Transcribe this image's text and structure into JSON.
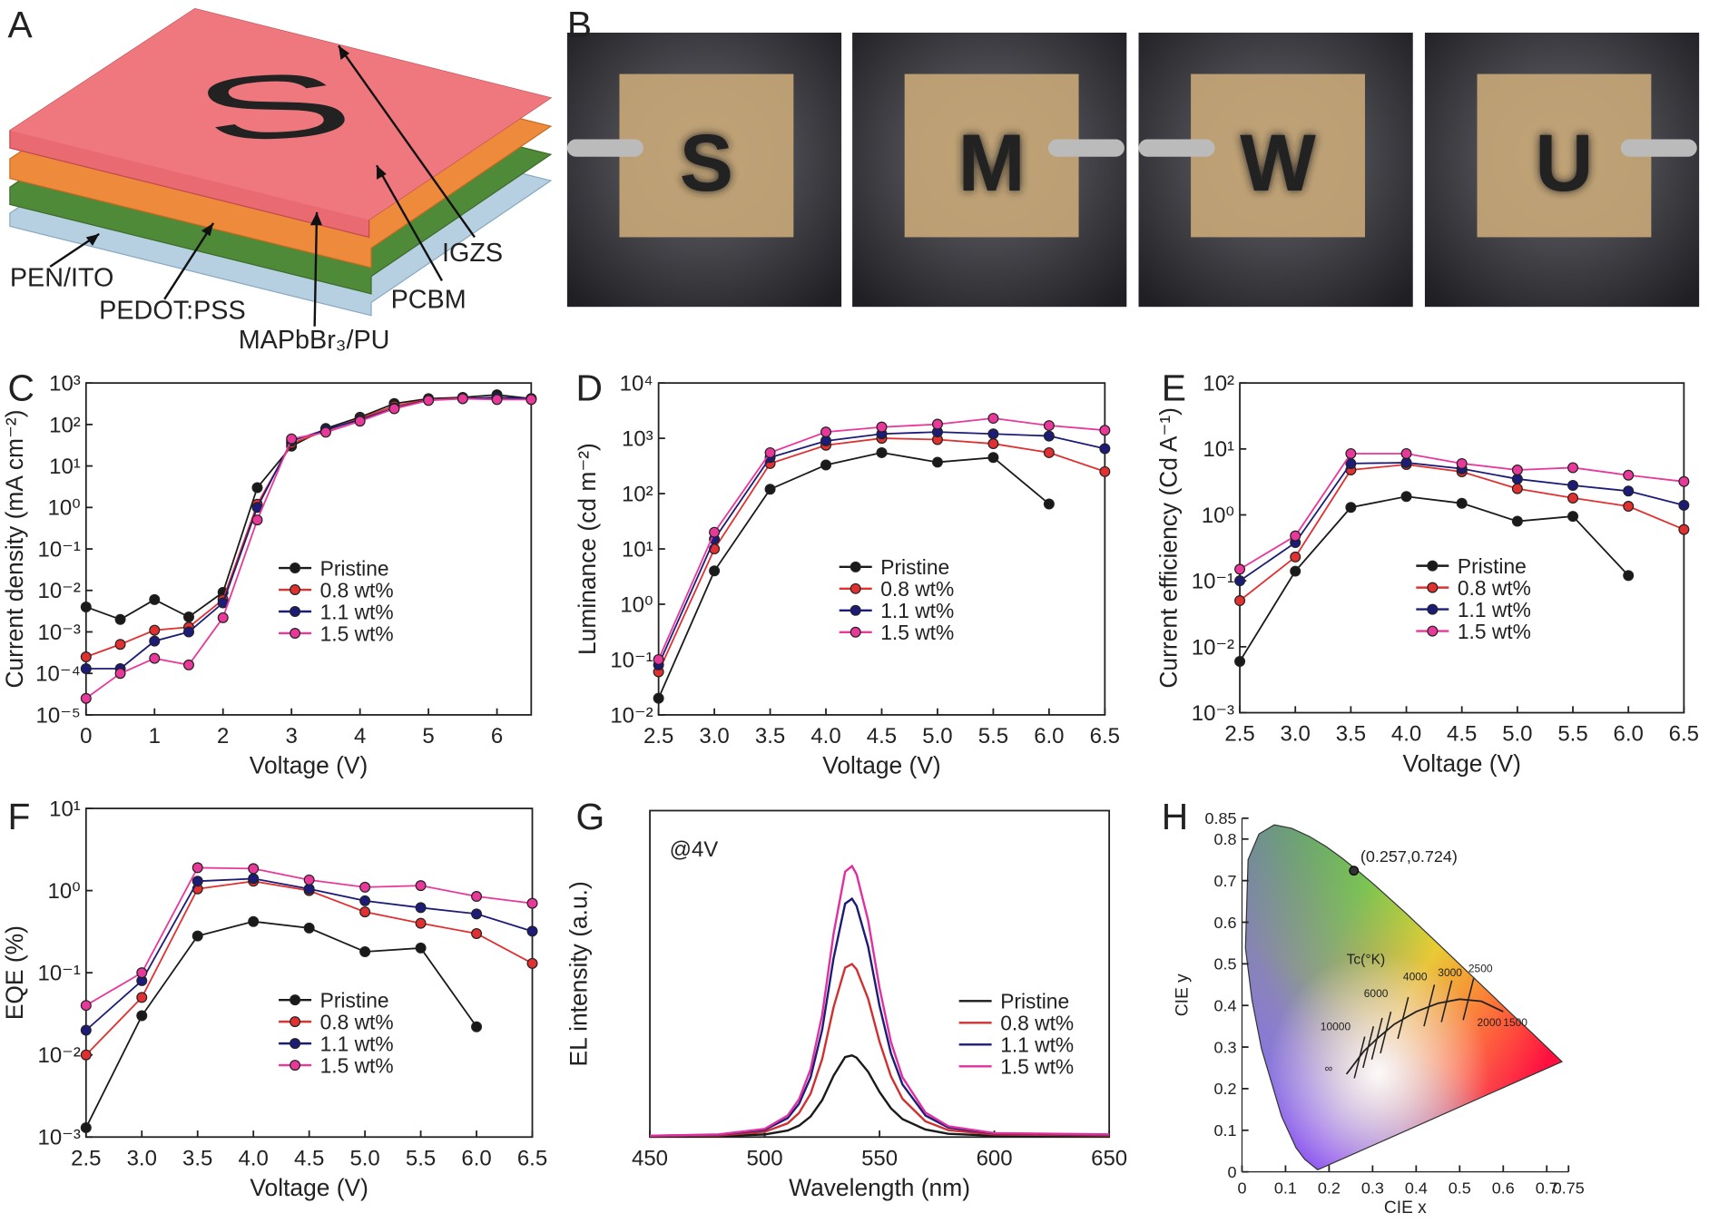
{
  "panel_labels": [
    "A",
    "B",
    "C",
    "D",
    "E",
    "F",
    "G",
    "H"
  ],
  "device_logo": "S",
  "device_layers": [
    "PEN/ITO",
    "PEDOT:PSS",
    "MAPbBr₃/PU",
    "PCBM",
    "IGZS"
  ],
  "photo_letters": [
    "S",
    "M",
    "W",
    "U"
  ],
  "chart_data": [
    {
      "type": "line",
      "x_label": "Voltage (V)",
      "y_label": "Current density (mA cm⁻²)",
      "x": [
        0,
        0.5,
        1,
        1.5,
        2,
        2.5,
        3,
        3.5,
        4,
        4.5,
        5,
        5.5,
        6,
        6.5
      ],
      "xlim": [
        0,
        6.5
      ],
      "xticks": [
        0,
        1,
        2,
        3,
        4,
        5,
        6
      ],
      "ylim": [
        1e-05,
        1000
      ],
      "log_y": true,
      "yticks": [
        {
          "value": 1e-05,
          "label": "10⁻⁵"
        },
        {
          "value": 0.0001,
          "label": "10⁻⁴"
        },
        {
          "value": 0.001,
          "label": "10⁻³"
        },
        {
          "value": 0.01,
          "label": "10⁻²"
        },
        {
          "value": 0.1,
          "label": "10⁻¹"
        },
        {
          "value": 1,
          "label": "10⁰"
        },
        {
          "value": 10,
          "label": "10¹"
        },
        {
          "value": 100,
          "label": "10²"
        },
        {
          "value": 1000,
          "label": "10³"
        }
      ],
      "markers": true,
      "legend": "center",
      "series": [
        {
          "name": "Pristine",
          "color": "#1a1a1a",
          "values": [
            0.004,
            0.002,
            0.006,
            0.0023,
            0.009,
            3,
            30,
            80,
            150,
            320,
            420,
            450,
            520,
            420
          ]
        },
        {
          "name": "0.8 wt%",
          "color": "#e03030",
          "values": [
            0.00025,
            0.0005,
            0.0011,
            0.0013,
            0.006,
            1.2,
            35,
            70,
            140,
            280,
            400,
            430,
            430,
            420
          ]
        },
        {
          "name": "1.1 wt%",
          "color": "#1c1c78",
          "values": [
            0.00013,
            0.00013,
            0.0006,
            0.001,
            0.005,
            1,
            40,
            75,
            130,
            250,
            390,
            420,
            450,
            420
          ]
        },
        {
          "name": "1.5 wt%",
          "color": "#e8389a",
          "values": [
            2.5e-05,
            0.0001,
            0.00023,
            0.00016,
            0.0022,
            0.5,
            45,
            65,
            120,
            240,
            380,
            420,
            400,
            400
          ]
        }
      ]
    },
    {
      "type": "line",
      "x_label": "Voltage (V)",
      "y_label": "Luminance (cd m⁻²)",
      "x": [
        2.5,
        3,
        3.5,
        4,
        4.5,
        5,
        5.5,
        6,
        6.5
      ],
      "xlim": [
        2.5,
        6.5
      ],
      "xticks": [
        2.5,
        {
          "value": 3,
          "label": "3.0"
        },
        3.5,
        {
          "value": 4,
          "label": "4.0"
        },
        4.5,
        {
          "value": 5,
          "label": "5.0"
        },
        5.5,
        {
          "value": 6,
          "label": "6.0"
        },
        6.5
      ],
      "ylim": [
        0.01,
        10000
      ],
      "log_y": true,
      "yticks": [
        {
          "value": 0.01,
          "label": "10⁻²"
        },
        {
          "value": 0.1,
          "label": "10⁻¹"
        },
        {
          "value": 1,
          "label": "10⁰"
        },
        {
          "value": 10,
          "label": "10¹"
        },
        {
          "value": 100,
          "label": "10²"
        },
        {
          "value": 1000,
          "label": "10³"
        },
        {
          "value": 10000,
          "label": "10⁴"
        }
      ],
      "markers": true,
      "legend": "center",
      "series": [
        {
          "name": "Pristine",
          "color": "#1a1a1a",
          "values": [
            0.02,
            4,
            120,
            330,
            550,
            370,
            450,
            65,
            null
          ]
        },
        {
          "name": "0.8 wt%",
          "color": "#e03030",
          "values": [
            0.06,
            10,
            350,
            750,
            1000,
            950,
            800,
            550,
            250
          ]
        },
        {
          "name": "1.1 wt%",
          "color": "#1c1c78",
          "values": [
            0.08,
            15,
            450,
            900,
            1200,
            1300,
            1200,
            1100,
            650
          ]
        },
        {
          "name": "1.5 wt%",
          "color": "#e8389a",
          "values": [
            0.1,
            20,
            550,
            1300,
            1600,
            1800,
            2300,
            1700,
            1400
          ]
        }
      ]
    },
    {
      "type": "line",
      "x_label": "Voltage (V)",
      "y_label": "Current efficiency (Cd A⁻¹)",
      "x": [
        2.5,
        3,
        3.5,
        4,
        4.5,
        5,
        5.5,
        6,
        6.5
      ],
      "xlim": [
        2.5,
        6.5
      ],
      "xticks": [
        2.5,
        {
          "value": 3,
          "label": "3.0"
        },
        3.5,
        {
          "value": 4,
          "label": "4.0"
        },
        4.5,
        {
          "value": 5,
          "label": "5.0"
        },
        5.5,
        {
          "value": 6,
          "label": "6.0"
        },
        6.5
      ],
      "ylim": [
        0.001,
        100
      ],
      "log_y": true,
      "yticks": [
        {
          "value": 0.001,
          "label": "10⁻³"
        },
        {
          "value": 0.01,
          "label": "10⁻²"
        },
        {
          "value": 0.1,
          "label": "10⁻¹"
        },
        {
          "value": 1,
          "label": "10⁰"
        },
        {
          "value": 10,
          "label": "10¹"
        },
        {
          "value": 100,
          "label": "10²"
        }
      ],
      "markers": true,
      "legend": "center",
      "series": [
        {
          "name": "Pristine",
          "color": "#1a1a1a",
          "values": [
            0.006,
            0.14,
            1.3,
            1.9,
            1.5,
            0.8,
            0.95,
            0.12,
            null
          ]
        },
        {
          "name": "0.8 wt%",
          "color": "#e03030",
          "values": [
            0.05,
            0.23,
            4.8,
            5.8,
            4.5,
            2.5,
            1.8,
            1.35,
            0.6
          ]
        },
        {
          "name": "1.1 wt%",
          "color": "#1c1c78",
          "values": [
            0.1,
            0.38,
            6,
            6.2,
            5,
            3.5,
            2.8,
            2.3,
            1.4
          ]
        },
        {
          "name": "1.5 wt%",
          "color": "#e8389a",
          "values": [
            0.15,
            0.48,
            8.5,
            8.5,
            6,
            4.8,
            5.2,
            4,
            3.2
          ]
        }
      ]
    },
    {
      "type": "line",
      "x_label": "Voltage (V)",
      "y_label": "EQE (%)",
      "x": [
        2.5,
        3,
        3.5,
        4,
        4.5,
        5,
        5.5,
        6,
        6.5
      ],
      "xlim": [
        2.5,
        6.5
      ],
      "xticks": [
        2.5,
        {
          "value": 3,
          "label": "3.0"
        },
        3.5,
        {
          "value": 4,
          "label": "4.0"
        },
        4.5,
        {
          "value": 5,
          "label": "5.0"
        },
        5.5,
        {
          "value": 6,
          "label": "6.0"
        },
        6.5
      ],
      "ylim": [
        0.001,
        10
      ],
      "log_y": true,
      "yticks": [
        {
          "value": 0.001,
          "label": "10⁻³"
        },
        {
          "value": 0.01,
          "label": "10⁻²"
        },
        {
          "value": 0.1,
          "label": "10⁻¹"
        },
        {
          "value": 1,
          "label": "10⁰"
        },
        {
          "value": 10,
          "label": "10¹"
        }
      ],
      "markers": true,
      "legend": "center",
      "series": [
        {
          "name": "Pristine",
          "color": "#1a1a1a",
          "values": [
            0.0013,
            0.03,
            0.28,
            0.42,
            0.35,
            0.18,
            0.2,
            0.022,
            null
          ]
        },
        {
          "name": "0.8 wt%",
          "color": "#e03030",
          "values": [
            0.01,
            0.05,
            1.05,
            1.3,
            1.0,
            0.55,
            0.4,
            0.3,
            0.13
          ]
        },
        {
          "name": "1.1 wt%",
          "color": "#1c1c78",
          "values": [
            0.02,
            0.08,
            1.3,
            1.4,
            1.05,
            0.75,
            0.62,
            0.52,
            0.32
          ]
        },
        {
          "name": "1.5 wt%",
          "color": "#e8389a",
          "values": [
            0.04,
            0.1,
            1.9,
            1.85,
            1.35,
            1.1,
            1.15,
            0.85,
            0.7
          ]
        }
      ]
    },
    {
      "type": "line",
      "x_label": "Wavelength (nm)",
      "y_label": "EL intensity (a.u.)",
      "annotation": "@4V",
      "x": [
        450,
        480,
        500,
        510,
        515,
        520,
        525,
        530,
        535,
        538,
        540,
        545,
        550,
        555,
        560,
        570,
        580,
        600,
        650
      ],
      "xlim": [
        450,
        650
      ],
      "xticks": [
        450,
        500,
        550,
        600,
        650
      ],
      "ylim": [
        0,
        1
      ],
      "markers": false,
      "legend": "lower right",
      "series": [
        {
          "name": "Pristine",
          "color": "#1a1a1a",
          "values": [
            0.001,
            0.003,
            0.008,
            0.02,
            0.035,
            0.063,
            0.113,
            0.188,
            0.245,
            0.25,
            0.243,
            0.2,
            0.138,
            0.088,
            0.055,
            0.023,
            0.01,
            0.004,
            0.003
          ]
        },
        {
          "name": "0.8 wt%",
          "color": "#d03030",
          "values": [
            0.003,
            0.005,
            0.016,
            0.042,
            0.074,
            0.133,
            0.239,
            0.398,
            0.519,
            0.53,
            0.514,
            0.424,
            0.292,
            0.186,
            0.117,
            0.048,
            0.021,
            0.008,
            0.005
          ]
        },
        {
          "name": "1.1 wt%",
          "color": "#1c1c78",
          "values": [
            0.004,
            0.007,
            0.022,
            0.058,
            0.102,
            0.183,
            0.329,
            0.548,
            0.715,
            0.73,
            0.708,
            0.584,
            0.402,
            0.256,
            0.161,
            0.066,
            0.029,
            0.011,
            0.007
          ]
        },
        {
          "name": "1.5 wt%",
          "color": "#e030a0",
          "values": [
            0.004,
            0.008,
            0.025,
            0.066,
            0.116,
            0.208,
            0.374,
            0.623,
            0.813,
            0.83,
            0.805,
            0.664,
            0.457,
            0.291,
            0.183,
            0.075,
            0.033,
            0.012,
            0.008
          ]
        }
      ]
    },
    {
      "type": "scatter",
      "x_label": "CIE x",
      "y_label": "CIE y",
      "x": [
        0.257
      ],
      "values": [
        0.724
      ],
      "color": "#333333",
      "annotation": "(0.257,0.724)",
      "xlim": [
        0,
        0.75
      ],
      "xticks": [
        0,
        0.1,
        0.2,
        0.3,
        0.4,
        0.5,
        0.6,
        0.7,
        0.75
      ],
      "ylim": [
        0,
        0.85
      ],
      "yticks": [
        0,
        0.1,
        0.2,
        0.3,
        0.4,
        0.5,
        0.6,
        0.7,
        0.8,
        0.85
      ],
      "locus_title": "Tc(°K)",
      "locus_labels": [
        "10000",
        "6000",
        "4000",
        "3000",
        "2500",
        "2000",
        "1500",
        "∞"
      ]
    }
  ]
}
